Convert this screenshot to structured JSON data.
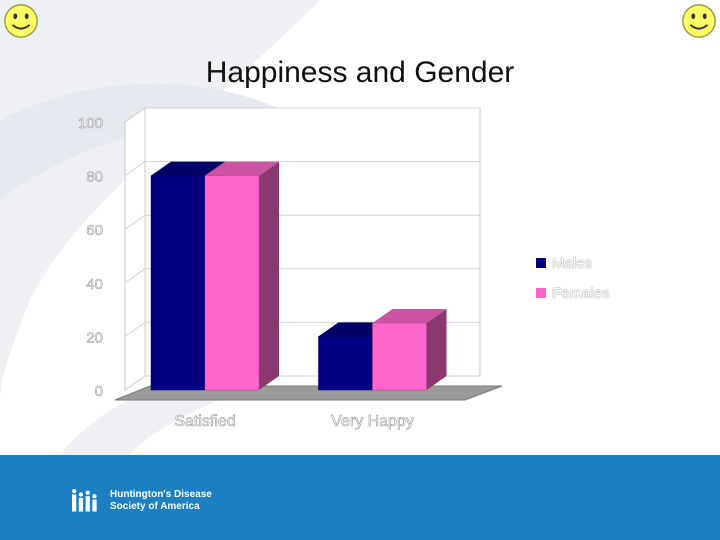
{
  "slide": {
    "title": "Happiness and Gender",
    "organization": "Huntington's Disease\nSociety of America"
  },
  "icons": {
    "top_left": "smiley-face-icon",
    "top_right": "smiley-face-icon",
    "footer": "hdsa-logo-icon"
  },
  "colors": {
    "footer": "#1b7fc1",
    "male": "#000080",
    "female": "#ff66cc"
  },
  "chart_data": {
    "type": "bar",
    "categories": [
      "Satisfied",
      "Very Happy"
    ],
    "series": [
      {
        "name": "Males",
        "values": [
          80,
          20
        ],
        "color": "#000080"
      },
      {
        "name": "Females",
        "values": [
          80,
          25
        ],
        "color": "#ff66cc"
      }
    ],
    "title": "",
    "xlabel": "",
    "ylabel": "",
    "ylim": [
      0,
      100
    ],
    "yticks": [
      0,
      20,
      40,
      60,
      80,
      100
    ],
    "grid": true,
    "legend": "right",
    "three_d": true
  }
}
